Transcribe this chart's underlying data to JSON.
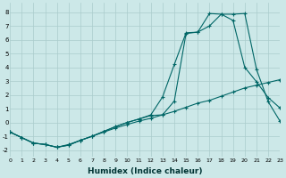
{
  "xlabel": "Humidex (Indice chaleur)",
  "xlim": [
    0,
    23
  ],
  "ylim": [
    -2.5,
    8.7
  ],
  "yticks": [
    -2,
    -1,
    0,
    1,
    2,
    3,
    4,
    5,
    6,
    7,
    8
  ],
  "xticks": [
    0,
    1,
    2,
    3,
    4,
    5,
    6,
    7,
    8,
    9,
    10,
    11,
    12,
    13,
    14,
    15,
    16,
    17,
    18,
    19,
    20,
    21,
    22,
    23
  ],
  "background_color": "#cce8e8",
  "grid_color": "#aacccc",
  "line_color": "#006666",
  "line1_x": [
    0,
    1,
    2,
    3,
    4,
    5,
    6,
    7,
    8,
    9,
    10,
    11,
    12,
    13,
    14,
    15,
    16,
    17,
    18,
    19,
    20,
    21,
    22,
    23
  ],
  "line1_y": [
    -0.7,
    -1.1,
    -1.5,
    -1.6,
    -1.8,
    -1.6,
    -1.3,
    -1.0,
    -0.7,
    -0.4,
    -0.15,
    0.1,
    0.3,
    0.55,
    0.8,
    1.1,
    1.4,
    1.6,
    1.9,
    2.2,
    2.5,
    2.7,
    2.9,
    3.1
  ],
  "line2_x": [
    0,
    1,
    2,
    3,
    4,
    5,
    6,
    7,
    8,
    9,
    10,
    11,
    12,
    13,
    14,
    15,
    16,
    17,
    18,
    19,
    20,
    21,
    22,
    23
  ],
  "line2_y": [
    -0.7,
    -1.1,
    -1.5,
    -1.6,
    -1.8,
    -1.65,
    -1.3,
    -1.0,
    -0.65,
    -0.3,
    -0.0,
    0.25,
    0.55,
    1.85,
    4.2,
    6.5,
    6.55,
    7.9,
    7.85,
    7.4,
    4.0,
    2.95,
    1.8,
    1.05
  ],
  "line3_x": [
    0,
    1,
    2,
    3,
    4,
    5,
    6,
    7,
    8,
    9,
    10,
    11,
    12,
    13,
    14,
    15,
    16,
    17,
    18,
    19,
    20,
    21,
    22,
    23
  ],
  "line3_y": [
    -0.7,
    -1.1,
    -1.5,
    -1.6,
    -1.8,
    -1.65,
    -1.3,
    -1.0,
    -0.65,
    -0.3,
    0.0,
    0.25,
    0.5,
    0.55,
    1.55,
    6.45,
    6.55,
    7.0,
    7.85,
    7.85,
    7.9,
    3.85,
    1.5,
    0.1
  ]
}
